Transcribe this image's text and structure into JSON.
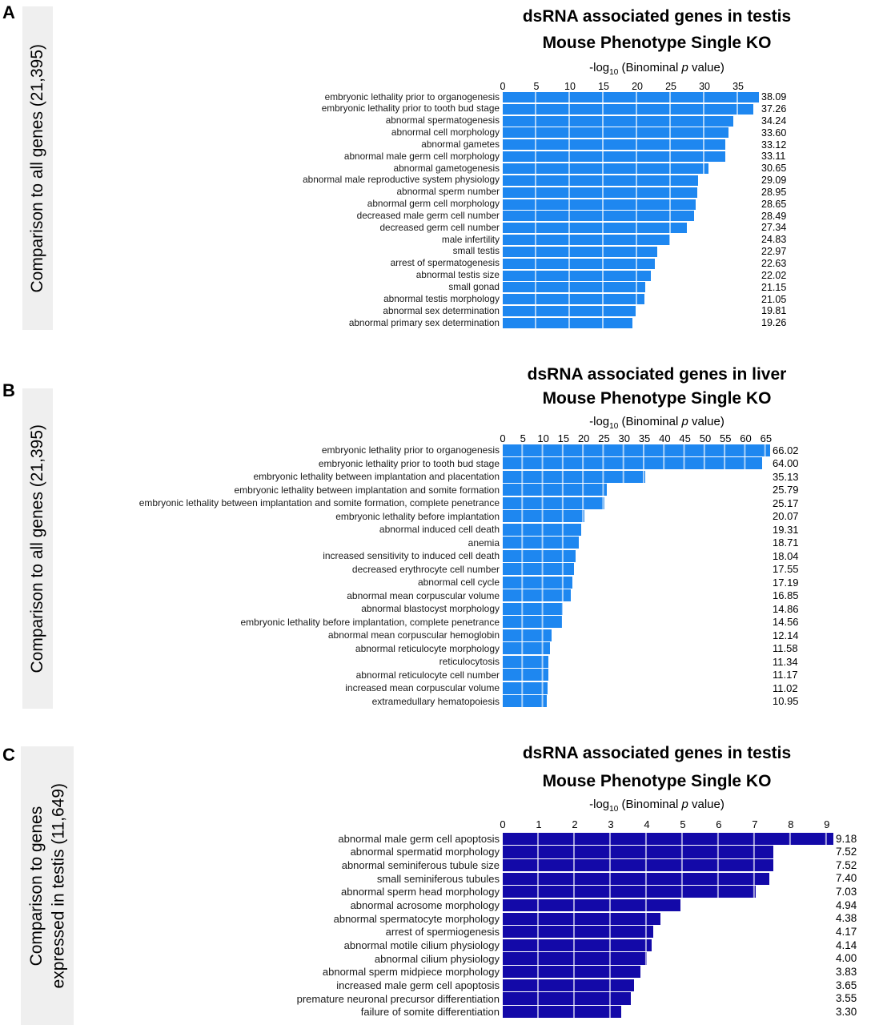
{
  "figure": {
    "panels": [
      {
        "letter": "A",
        "side_label_line1": "Comparison to all genes (21,395)",
        "side_label_line2": ""
      },
      {
        "letter": "B",
        "side_label_line1": "Comparison to all genes (21,395)",
        "side_label_line2": ""
      },
      {
        "letter": "C",
        "side_label_line1": "Comparison to genes",
        "side_label_line2": "expressed in testis (11,649)"
      }
    ]
  },
  "colors": {
    "bright_blue_bar": "#1e87f0",
    "dark_navy_bar": "#1309a8",
    "side_strip_bg": "#efefef",
    "grid_line_on_bar": "rgba(255,255,255,0.62)"
  },
  "chart_data": [
    {
      "type": "bar",
      "orientation": "horizontal",
      "title_line1": "dsRNA associated genes in testis",
      "title_line2": "Mouse Phenotype Single KO",
      "xlabel": "-log10 (Binominal p value)",
      "xlabel_parts": {
        "prefix": "-log",
        "sub": "10",
        "mid": " (Binominal ",
        "italic": "p",
        "suffix": " value)"
      },
      "ticks": [
        0,
        5,
        10,
        15,
        20,
        25,
        30,
        35
      ],
      "tick_interval": 5,
      "scale_max": 38.09,
      "bar_color": "#1e87f0",
      "grid": true,
      "legend": false,
      "categories": [
        "embryonic lethality prior to organogenesis",
        "embryonic lethality prior to tooth bud stage",
        "abnormal spermatogenesis",
        "abnormal cell morphology",
        "abnormal gametes",
        "abnormal male germ cell morphology",
        "abnormal gametogenesis",
        "abnormal male reproductive system physiology",
        "abnormal sperm number",
        "abnormal germ cell morphology",
        "decreased male germ cell number",
        "decreased germ cell number",
        "male infertility",
        "small testis",
        "arrest of spermatogenesis",
        "abnormal testis size",
        "small gonad",
        "abnormal testis morphology",
        "abnormal sex determination",
        "abnormal primary sex determination"
      ],
      "values": [
        38.09,
        37.26,
        34.24,
        33.6,
        33.12,
        33.11,
        30.65,
        29.09,
        28.95,
        28.65,
        28.49,
        27.34,
        24.83,
        22.97,
        22.63,
        22.02,
        21.15,
        21.05,
        19.81,
        19.26
      ],
      "value_labels": [
        "38.09",
        "37.26",
        "34.24",
        "33.60",
        "33.12",
        "33.11",
        "30.65",
        "29.09",
        "28.95",
        "28.65",
        "28.49",
        "27.34",
        "24.83",
        "22.97",
        "22.63",
        "22.02",
        "21.15",
        "21.05",
        "19.81",
        "19.26"
      ]
    },
    {
      "type": "bar",
      "orientation": "horizontal",
      "title_line1": "dsRNA associated genes in liver",
      "title_line2": "Mouse Phenotype Single KO",
      "xlabel": "-log10 (Binominal p value)",
      "xlabel_parts": {
        "prefix": "-log",
        "sub": "10",
        "mid": " (Binominal ",
        "italic": "p",
        "suffix": " value)"
      },
      "ticks": [
        0,
        5,
        10,
        15,
        20,
        25,
        30,
        35,
        40,
        45,
        50,
        55,
        60,
        65
      ],
      "tick_interval": 5,
      "scale_max": 66.02,
      "bar_color": "#1e87f0",
      "grid": true,
      "legend": false,
      "categories": [
        "embryonic lethality prior to organogenesis",
        "embryonic lethality prior to tooth bud stage",
        "embryonic lethality between implantation and placentation",
        "embryonic lethality between implantation and somite formation",
        "embryonic lethality between implantation and somite formation, complete penetrance",
        "embryonic lethality before implantation",
        "abnormal induced cell death",
        "anemia",
        "increased sensitivity to induced cell death",
        "decreased erythrocyte cell number",
        "abnormal cell cycle",
        "abnormal mean corpuscular volume",
        "abnormal blastocyst morphology",
        "embryonic lethality before implantation, complete penetrance",
        "abnormal mean corpuscular hemoglobin",
        "abnormal reticulocyte morphology",
        "reticulocytosis",
        "abnormal reticulocyte cell number",
        "increased mean corpuscular volume",
        "extramedullary hematopoiesis"
      ],
      "values": [
        66.02,
        64.0,
        35.13,
        25.79,
        25.17,
        20.07,
        19.31,
        18.71,
        18.04,
        17.55,
        17.19,
        16.85,
        14.86,
        14.56,
        12.14,
        11.58,
        11.34,
        11.17,
        11.02,
        10.95
      ],
      "value_labels": [
        "66.02",
        "64.00",
        "35.13",
        "25.79",
        "25.17",
        "20.07",
        "19.31",
        "18.71",
        "18.04",
        "17.55",
        "17.19",
        "16.85",
        "14.86",
        "14.56",
        "12.14",
        "11.58",
        "11.34",
        "11.17",
        "11.02",
        "10.95"
      ]
    },
    {
      "type": "bar",
      "orientation": "horizontal",
      "title_line1": "dsRNA associated genes in testis",
      "title_line2": "Mouse Phenotype Single KO",
      "xlabel": "-log10 (Binominal p value)",
      "xlabel_parts": {
        "prefix": "-log",
        "sub": "10",
        "mid": " (Binominal ",
        "italic": "p",
        "suffix": " value)"
      },
      "ticks": [
        0,
        1,
        2,
        3,
        4,
        5,
        6,
        7,
        8,
        9
      ],
      "tick_interval": 1,
      "scale_max": 9.18,
      "bar_color": "#1309a8",
      "grid": true,
      "legend": false,
      "categories": [
        "abnormal male germ cell apoptosis",
        "abnormal spermatid morphology",
        "abnormal seminiferous tubule size",
        "small seminiferous tubules",
        "abnormal sperm head morphology",
        "abnormal acrosome morphology",
        "abnormal spermatocyte morphology",
        "arrest of spermiogenesis",
        "abnormal motile cilium physiology",
        "abnormal cilium physiology",
        "abnormal sperm midpiece morphology",
        "increased male germ cell apoptosis",
        "premature neuronal precursor differentiation",
        "failure of somite differentiation"
      ],
      "values": [
        9.18,
        7.52,
        7.52,
        7.4,
        7.03,
        4.94,
        4.38,
        4.17,
        4.14,
        4.0,
        3.83,
        3.65,
        3.55,
        3.3
      ],
      "value_labels": [
        "9.18",
        "7.52",
        "7.52",
        "7.40",
        "7.03",
        "4.94",
        "4.38",
        "4.17",
        "4.14",
        "4.00",
        "3.83",
        "3.65",
        "3.55",
        "3.30"
      ]
    }
  ]
}
